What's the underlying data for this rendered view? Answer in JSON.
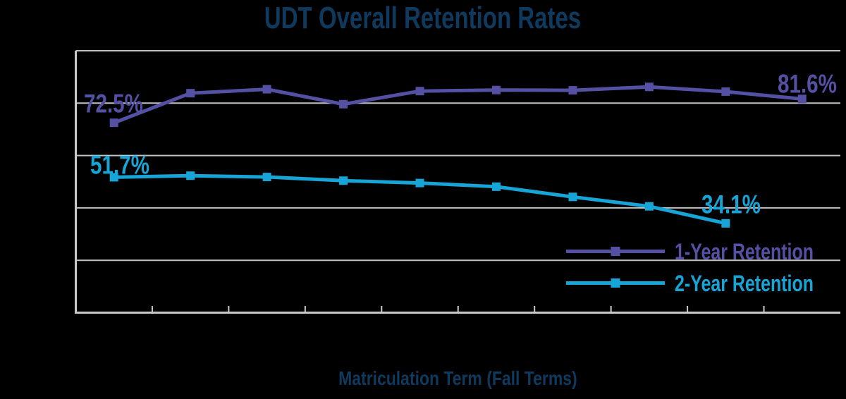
{
  "title": "UDT Overall Retention Rates",
  "colors": {
    "background": "#000000",
    "title_text": "#0F3A5E",
    "axis_line": "#C9C9C9",
    "gridline": "#C3C3C3",
    "series_1_year": "#5450A3",
    "series_2_year": "#16A5D6"
  },
  "chart_data": {
    "type": "line",
    "title": "UDT Overall Retention Rates",
    "xlabel": "Matriculation Term (Fall Terms)",
    "ylabel": "",
    "ylim": [
      0,
      100
    ],
    "gridline_interval": 20,
    "grid": "horizontal",
    "num_categories": 10,
    "x_tick_labels": [],
    "y_tick_labels_visible": false,
    "legend_position": "inside-bottom-right",
    "marker": "square",
    "series": [
      {
        "name": "1-Year Retention",
        "color": "#5450A3",
        "values": [
          72.5,
          83.8,
          85.3,
          79.6,
          84.6,
          85.0,
          84.9,
          86.2,
          84.4,
          81.6
        ],
        "point_labels": [
          {
            "index": 0,
            "text": "72.5%",
            "dx": -1,
            "dy": -27
          },
          {
            "index": 9,
            "text": "81.6%",
            "dx": 7,
            "dy": -21
          }
        ]
      },
      {
        "name": "2-Year Retention",
        "color": "#16A5D6",
        "values": [
          51.7,
          52.3,
          51.8,
          50.4,
          49.5,
          48.1,
          44.2,
          40.6,
          34.1
        ],
        "point_labels": [
          {
            "index": 0,
            "text": "51.7%",
            "dx": 8,
            "dy": -17
          },
          {
            "index": 8,
            "text": "34.1%",
            "dx": 8,
            "dy": -27
          }
        ]
      }
    ]
  }
}
